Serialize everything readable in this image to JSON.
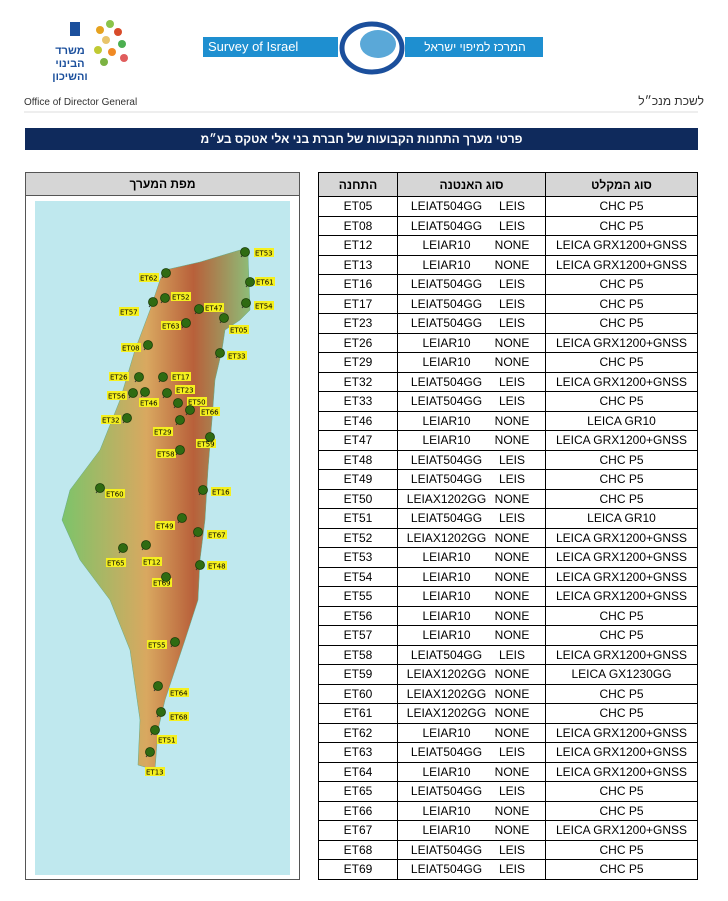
{
  "header": {
    "left_logo_text": "משרד הבינוי והשיכון",
    "survey_name": "Survey of Israel",
    "survey_hebrew": "המרכז למיפוי ישראל",
    "office_en": "Office of Director General",
    "office_he": "לשכת מנכ״ל"
  },
  "title": "פרטי מערך התחנות הקבועות של חברת בני אלי אטקס בע״מ",
  "map": {
    "title": "מפת המערך"
  },
  "table": {
    "columns": [
      "התחנה",
      "סוג האנטנה",
      "סוג המקלט"
    ],
    "rows": [
      [
        "ET05",
        "LEIAT504GG",
        "LEIS",
        "CHC P5"
      ],
      [
        "ET08",
        "LEIAT504GG",
        "LEIS",
        "CHC P5"
      ],
      [
        "ET12",
        "LEIAR10",
        "NONE",
        "LEICA GRX1200+GNSS"
      ],
      [
        "ET13",
        "LEIAR10",
        "NONE",
        "LEICA GRX1200+GNSS"
      ],
      [
        "ET16",
        "LEIAT504GG",
        "LEIS",
        "CHC P5"
      ],
      [
        "ET17",
        "LEIAT504GG",
        "LEIS",
        "CHC P5"
      ],
      [
        "ET23",
        "LEIAT504GG",
        "LEIS",
        "CHC P5"
      ],
      [
        "ET26",
        "LEIAR10",
        "NONE",
        "LEICA GRX1200+GNSS"
      ],
      [
        "ET29",
        "LEIAR10",
        "NONE",
        "CHC P5"
      ],
      [
        "ET32",
        "LEIAT504GG",
        "LEIS",
        "LEICA GRX1200+GNSS"
      ],
      [
        "ET33",
        "LEIAT504GG",
        "LEIS",
        "CHC P5"
      ],
      [
        "ET46",
        "LEIAR10",
        "NONE",
        "LEICA GR10"
      ],
      [
        "ET47",
        "LEIAR10",
        "NONE",
        "LEICA GRX1200+GNSS"
      ],
      [
        "ET48",
        "LEIAT504GG",
        "LEIS",
        "CHC P5"
      ],
      [
        "ET49",
        "LEIAT504GG",
        "LEIS",
        "CHC P5"
      ],
      [
        "ET50",
        "LEIAX1202GG",
        "NONE",
        "CHC P5"
      ],
      [
        "ET51",
        "LEIAT504GG",
        "LEIS",
        "LEICA GR10"
      ],
      [
        "ET52",
        "LEIAX1202GG",
        "NONE",
        "LEICA GRX1200+GNSS"
      ],
      [
        "ET53",
        "LEIAR10",
        "NONE",
        "LEICA GRX1200+GNSS"
      ],
      [
        "ET54",
        "LEIAR10",
        "NONE",
        "LEICA GRX1200+GNSS"
      ],
      [
        "ET55",
        "LEIAR10",
        "NONE",
        "LEICA GRX1200+GNSS"
      ],
      [
        "ET56",
        "LEIAR10",
        "NONE",
        "CHC P5"
      ],
      [
        "ET57",
        "LEIAR10",
        "NONE",
        "CHC P5"
      ],
      [
        "ET58",
        "LEIAT504GG",
        "LEIS",
        "LEICA GRX1200+GNSS"
      ],
      [
        "ET59",
        "LEIAX1202GG",
        "NONE",
        "LEICA GX1230GG"
      ],
      [
        "ET60",
        "LEIAX1202GG",
        "NONE",
        "CHC P5"
      ],
      [
        "ET61",
        "LEIAX1202GG",
        "NONE",
        "CHC P5"
      ],
      [
        "ET62",
        "LEIAR10",
        "NONE",
        "LEICA GRX1200+GNSS"
      ],
      [
        "ET63",
        "LEIAT504GG",
        "LEIS",
        "LEICA GRX1200+GNSS"
      ],
      [
        "ET64",
        "LEIAR10",
        "NONE",
        "LEICA GRX1200+GNSS"
      ],
      [
        "ET65",
        "LEIAT504GG",
        "LEIS",
        "CHC P5"
      ],
      [
        "ET66",
        "LEIAR10",
        "NONE",
        "CHC P5"
      ],
      [
        "ET67",
        "LEIAR10",
        "NONE",
        "LEICA GRX1200+GNSS"
      ],
      [
        "ET68",
        "LEIAT504GG",
        "LEIS",
        "CHC P5"
      ],
      [
        "ET69",
        "LEIAT504GG",
        "LEIS",
        "CHC P5"
      ]
    ]
  }
}
